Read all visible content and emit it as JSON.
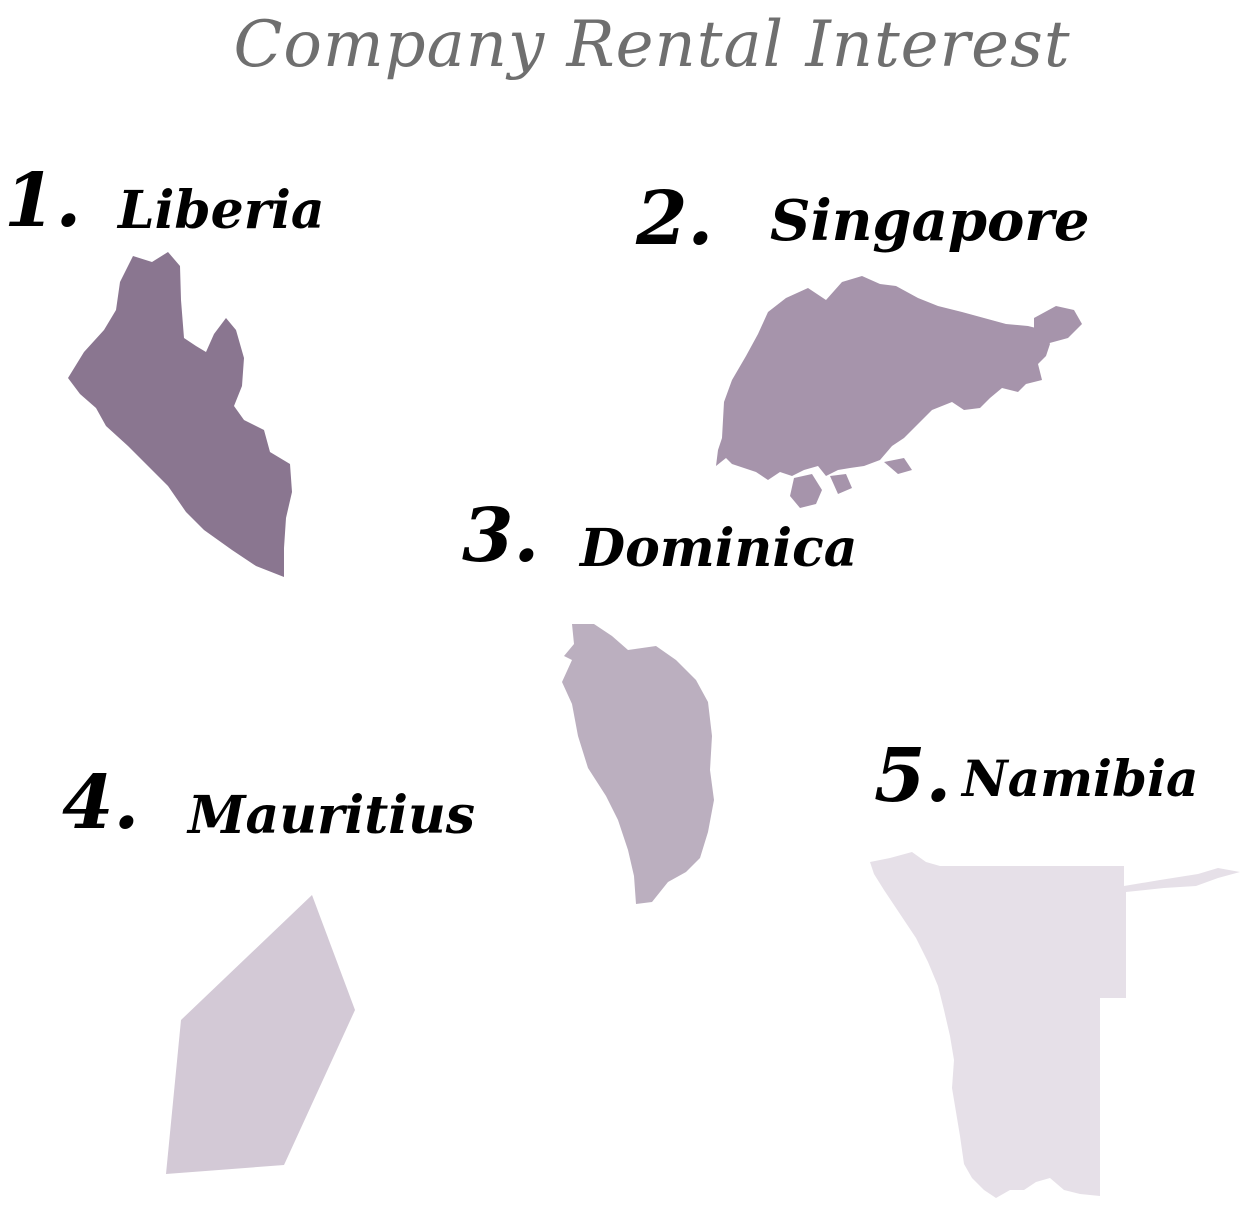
{
  "title": "Company Rental Interest",
  "entries": [
    {
      "rank": "1.",
      "name": "Liberia",
      "color": "#8a7690"
    },
    {
      "rank": "2.",
      "name": "Singapore",
      "color": "#a694ab"
    },
    {
      "rank": "3.",
      "name": "Dominica",
      "color": "#bbafbf"
    },
    {
      "rank": "4.",
      "name": "Mauritius",
      "color": "#d3c9d6"
    },
    {
      "rank": "5.",
      "name": "Namibia",
      "color": "#e6e0e8"
    }
  ]
}
